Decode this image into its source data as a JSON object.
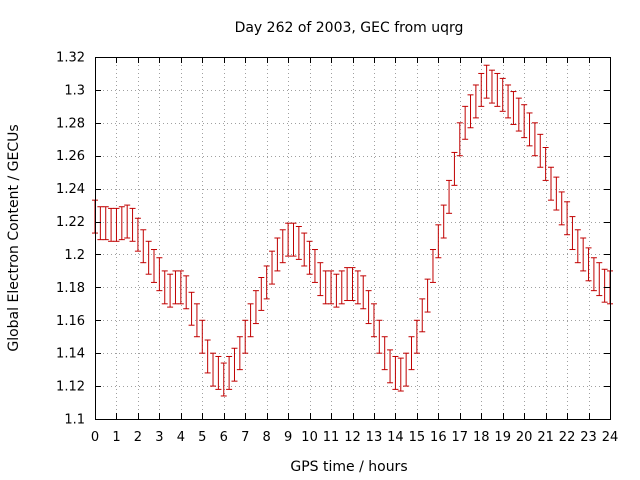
{
  "chart_data": {
    "type": "line",
    "title": "Day 262 of 2003, GEC from uqrg",
    "xlabel": "GPS time / hours",
    "ylabel": "Global Electron Content / GECUs",
    "xlim": [
      0,
      24
    ],
    "ylim": [
      1.1,
      1.32
    ],
    "xticks": [
      0,
      1,
      2,
      3,
      4,
      5,
      6,
      7,
      8,
      9,
      10,
      11,
      12,
      13,
      14,
      15,
      16,
      17,
      18,
      19,
      20,
      21,
      22,
      23,
      24
    ],
    "yticks": [
      1.1,
      1.12,
      1.14,
      1.16,
      1.18,
      1.2,
      1.22,
      1.24,
      1.26,
      1.28,
      1.3,
      1.32
    ],
    "grid": true,
    "color": "#c00000",
    "series": [
      {
        "style": "errorbars",
        "x": [
          0,
          0.25,
          0.5,
          0.75,
          1,
          1.25,
          1.5,
          1.75,
          2,
          2.25,
          2.5,
          2.75,
          3,
          3.25,
          3.5,
          3.75,
          4,
          4.25,
          4.5,
          4.75,
          5,
          5.25,
          5.5,
          5.75,
          6,
          6.25,
          6.5,
          6.75,
          7,
          7.25,
          7.5,
          7.75,
          8,
          8.25,
          8.5,
          8.75,
          9,
          9.25,
          9.5,
          9.75,
          10,
          10.25,
          10.5,
          10.75,
          11,
          11.25,
          11.5,
          11.75,
          12,
          12.25,
          12.5,
          12.75,
          13,
          13.25,
          13.5,
          13.75,
          14,
          14.25,
          14.5,
          14.75,
          15,
          15.25,
          15.5,
          15.75,
          16,
          16.25,
          16.5,
          16.75,
          17,
          17.25,
          17.5,
          17.75,
          18,
          18.25,
          18.5,
          18.75,
          19,
          19.25,
          19.5,
          19.75,
          20,
          20.25,
          20.5,
          20.75,
          21,
          21.25,
          21.5,
          21.75,
          22,
          22.25,
          22.5,
          22.75,
          23,
          23.25,
          23.5,
          23.75,
          24
        ],
        "y": [
          1.223,
          1.219,
          1.219,
          1.218,
          1.218,
          1.219,
          1.22,
          1.218,
          1.212,
          1.205,
          1.198,
          1.193,
          1.188,
          1.18,
          1.178,
          1.18,
          1.18,
          1.177,
          1.167,
          1.16,
          1.15,
          1.138,
          1.13,
          1.128,
          1.124,
          1.128,
          1.133,
          1.14,
          1.15,
          1.16,
          1.168,
          1.176,
          1.183,
          1.192,
          1.2,
          1.205,
          1.209,
          1.209,
          1.207,
          1.203,
          1.198,
          1.193,
          1.185,
          1.18,
          1.18,
          1.178,
          1.18,
          1.182,
          1.182,
          1.18,
          1.177,
          1.168,
          1.16,
          1.15,
          1.14,
          1.132,
          1.128,
          1.127,
          1.13,
          1.14,
          1.15,
          1.163,
          1.175,
          1.193,
          1.208,
          1.22,
          1.235,
          1.252,
          1.27,
          1.28,
          1.287,
          1.293,
          1.3,
          1.305,
          1.302,
          1.3,
          1.297,
          1.293,
          1.289,
          1.285,
          1.281,
          1.276,
          1.27,
          1.263,
          1.255,
          1.243,
          1.237,
          1.228,
          1.222,
          1.213,
          1.205,
          1.2,
          1.194,
          1.188,
          1.185,
          1.181,
          1.18
        ],
        "err": 0.01
      }
    ]
  }
}
